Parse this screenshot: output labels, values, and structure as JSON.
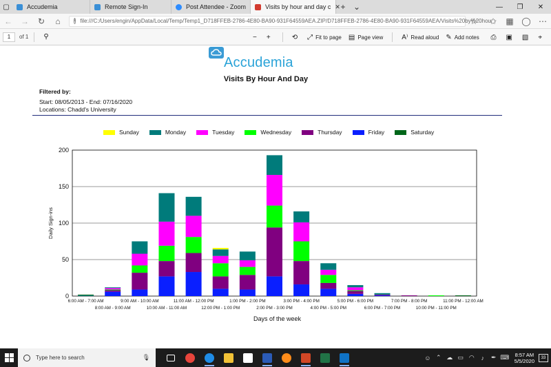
{
  "tabs": [
    {
      "title": "Accudemia",
      "icon": "accudemia-tab-icon",
      "color": "#3a8fd6"
    },
    {
      "title": "Remote Sign-In",
      "icon": "remote-signin-tab-icon",
      "color": "#3a8fd6"
    },
    {
      "title": "Post Attendee - Zoom",
      "icon": "zoom-tab-icon",
      "color": "#2d8cff"
    },
    {
      "title": "Visits by hour and day c",
      "icon": "pdf-tab-icon",
      "color": "#d23b2f",
      "active": true
    }
  ],
  "address": {
    "url": "file:///C:/Users/engin/AppData/Local/Temp/Temp1_D718FFEB-2786-4E80-BA90-931F64559AEA.ZIP/D718FFEB-2786-4E80-BA90-931F64559AEA/Visits%20by%20hou"
  },
  "pdf_toolbar": {
    "page": "1",
    "of": "of 1",
    "zoom_out": "−",
    "zoom_in": "+",
    "fit_to_page": "Fit to page",
    "page_view": "Page view",
    "read_aloud": "Read aloud",
    "add_notes": "Add notes"
  },
  "report": {
    "logo_text": "Accudemia",
    "title": "Visits By Hour And Day",
    "filtered_by": "Filtered by:",
    "date_range": "Start: 08/05/2013 - End: 07/16/2020",
    "locations": "Locations: Chadd's University"
  },
  "chart_data": {
    "type": "bar",
    "stacked": true,
    "title": "",
    "xlabel": "Days of the week",
    "ylabel": "Daily Sign-ins",
    "ylim": [
      0,
      200
    ],
    "yticks": [
      0,
      50,
      100,
      150,
      200
    ],
    "grid": true,
    "legend_position": "top",
    "categories": [
      "6:00 AM - 7:00 AM",
      "8:00 AM - 9:00 AM",
      "9:00 AM - 10:00 AM",
      "10:00 AM - 11:00 AM",
      "11:00 AM - 12:00 PM",
      "12:00 PM - 1:00 PM",
      "1:00 PM - 2:00 PM",
      "2:00 PM - 3:00 PM",
      "3:00 PM - 4:00 PM",
      "4:00 PM - 5:00 PM",
      "5:00 PM - 6:00 PM",
      "6:00 PM - 7:00 PM",
      "7:00 PM - 8:00 PM",
      "10:00 PM - 11:00 PM",
      "11:00 PM - 12:00 AM"
    ],
    "series": [
      {
        "name": "Friday",
        "color": "#0a1fff",
        "values": [
          0,
          6,
          9,
          27,
          33,
          10,
          9,
          27,
          16,
          10,
          3,
          1,
          0,
          0,
          0
        ]
      },
      {
        "name": "Thursday",
        "color": "#800080",
        "values": [
          0,
          2,
          23,
          21,
          26,
          17,
          20,
          67,
          32,
          8,
          4,
          1,
          1,
          0,
          0
        ]
      },
      {
        "name": "Wednesday",
        "color": "#00ff00",
        "values": [
          0,
          1,
          10,
          21,
          22,
          18,
          11,
          30,
          27,
          11,
          1,
          0,
          0,
          1,
          0
        ]
      },
      {
        "name": "Tuesday",
        "color": "#ff00ff",
        "values": [
          0,
          2,
          16,
          33,
          29,
          10,
          9,
          42,
          26,
          7,
          4,
          0,
          0,
          0,
          0
        ]
      },
      {
        "name": "Monday",
        "color": "#007b7b",
        "values": [
          1,
          1,
          17,
          39,
          26,
          9,
          12,
          27,
          15,
          9,
          3,
          2,
          0,
          0,
          0
        ]
      },
      {
        "name": "Sunday",
        "color": "#ffff00",
        "values": [
          0,
          0,
          0,
          0,
          0,
          2,
          0,
          0,
          0,
          0,
          0,
          0,
          0,
          0,
          0
        ]
      },
      {
        "name": "Saturday",
        "color": "#00661a",
        "values": [
          1,
          0,
          0,
          0,
          0,
          0,
          0,
          0,
          0,
          0,
          0,
          0,
          0,
          0,
          1
        ]
      }
    ],
    "legend_order": [
      "Sunday",
      "Monday",
      "Tuesday",
      "Wednesday",
      "Thursday",
      "Friday",
      "Saturday"
    ]
  },
  "taskbar": {
    "search_placeholder": "Type here to search",
    "time": "8:57 AM",
    "date": "5/5/2020",
    "notifications": "33",
    "apps": [
      {
        "name": "task-view-icon",
        "color": "#ffffff"
      },
      {
        "name": "chrome-icon",
        "color": "#e8453c"
      },
      {
        "name": "edge-icon",
        "color": "#1f8ce6",
        "open": true
      },
      {
        "name": "file-explorer-icon",
        "color": "#f2c237"
      },
      {
        "name": "store-icon",
        "color": "#ffffff"
      },
      {
        "name": "word-icon",
        "color": "#2b5bb7",
        "open": true
      },
      {
        "name": "firefox-icon",
        "color": "#ff8c1a"
      },
      {
        "name": "powerpoint-icon",
        "color": "#d24726",
        "open": true
      },
      {
        "name": "excel-icon",
        "color": "#217346"
      },
      {
        "name": "outlook-icon",
        "color": "#0f72c5",
        "open": true
      }
    ]
  }
}
